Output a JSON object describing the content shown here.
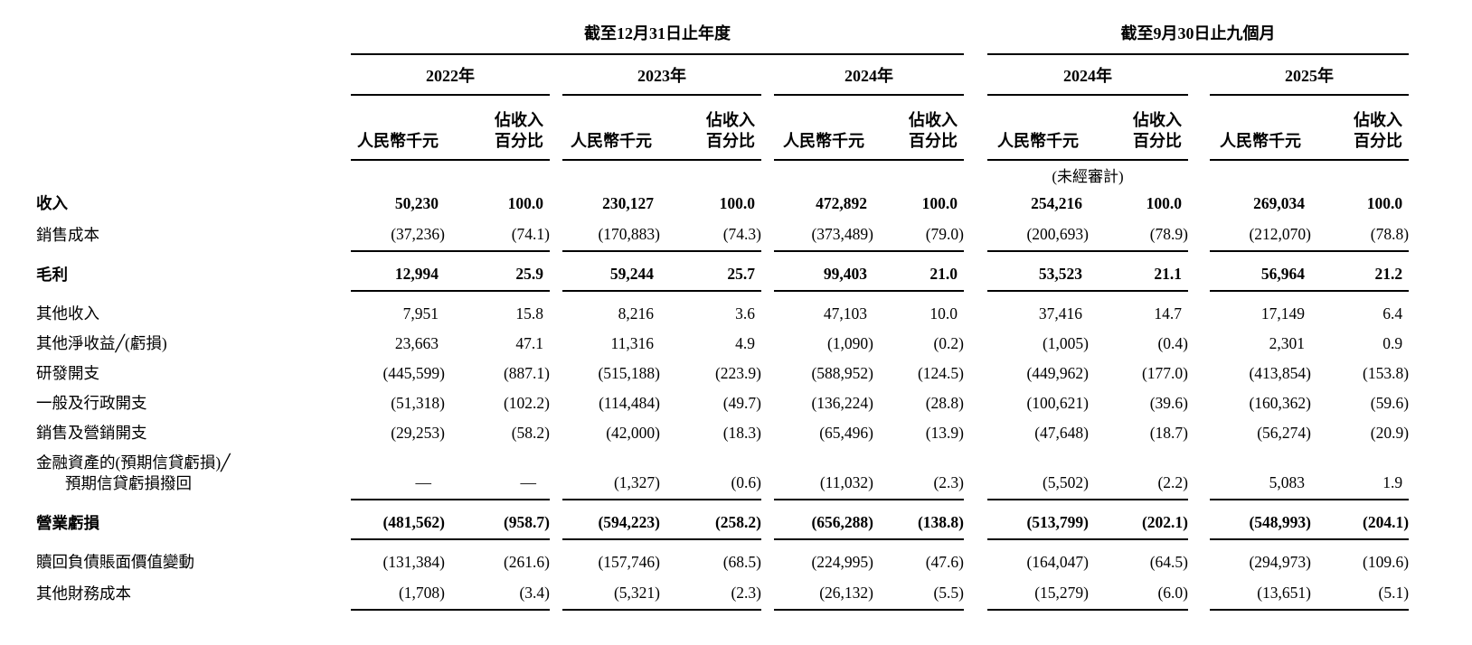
{
  "table": {
    "group_headers": [
      {
        "label": "截至12月31日止年度"
      },
      {
        "label": "截至9月30日止九個月"
      }
    ],
    "years": [
      "2022年",
      "2023年",
      "2024年",
      "2024年",
      "2025年"
    ],
    "col_headers": {
      "amount": "人民幣千元",
      "pct_line1": "佔收入",
      "pct_line2": "百分比"
    },
    "unaudited_note": "(未經審計)",
    "rows": [
      {
        "label": "收入",
        "bold": true,
        "rule_below": false,
        "gap_above": false,
        "values": [
          "50,230",
          "100.0",
          "230,127",
          "100.0",
          "472,892",
          "100.0",
          "254,216",
          "100.0",
          "269,034",
          "100.0"
        ]
      },
      {
        "label": "銷售成本",
        "bold": false,
        "rule_below": true,
        "gap_above": false,
        "values": [
          "(37,236)",
          "(74.1)",
          "(170,883)",
          "(74.3)",
          "(373,489)",
          "(79.0)",
          "(200,693)",
          "(78.9)",
          "(212,070)",
          "(78.8)"
        ]
      },
      {
        "label": "毛利",
        "bold": true,
        "rule_below": true,
        "gap_above": true,
        "values": [
          "12,994",
          "25.9",
          "59,244",
          "25.7",
          "99,403",
          "21.0",
          "53,523",
          "21.1",
          "56,964",
          "21.2"
        ]
      },
      {
        "label": "其他收入",
        "bold": false,
        "rule_below": false,
        "gap_above": true,
        "values": [
          "7,951",
          "15.8",
          "8,216",
          "3.6",
          "47,103",
          "10.0",
          "37,416",
          "14.7",
          "17,149",
          "6.4"
        ]
      },
      {
        "label": "其他淨收益╱(虧損)",
        "bold": false,
        "rule_below": false,
        "gap_above": false,
        "values": [
          "23,663",
          "47.1",
          "11,316",
          "4.9",
          "(1,090)",
          "(0.2)",
          "(1,005)",
          "(0.4)",
          "2,301",
          "0.9"
        ]
      },
      {
        "label": "研發開支",
        "bold": false,
        "rule_below": false,
        "gap_above": false,
        "values": [
          "(445,599)",
          "(887.1)",
          "(515,188)",
          "(223.9)",
          "(588,952)",
          "(124.5)",
          "(449,962)",
          "(177.0)",
          "(413,854)",
          "(153.8)"
        ]
      },
      {
        "label": "一般及行政開支",
        "bold": false,
        "rule_below": false,
        "gap_above": false,
        "values": [
          "(51,318)",
          "(102.2)",
          "(114,484)",
          "(49.7)",
          "(136,224)",
          "(28.8)",
          "(100,621)",
          "(39.6)",
          "(160,362)",
          "(59.6)"
        ]
      },
      {
        "label": "銷售及營銷開支",
        "bold": false,
        "rule_below": false,
        "gap_above": false,
        "values": [
          "(29,253)",
          "(58.2)",
          "(42,000)",
          "(18.3)",
          "(65,496)",
          "(13.9)",
          "(47,648)",
          "(18.7)",
          "(56,274)",
          "(20.9)"
        ]
      },
      {
        "label": "金融資產的(預期信貸虧損)╱",
        "label2": "預期信貸虧損撥回",
        "bold": false,
        "rule_below": true,
        "gap_above": false,
        "values": [
          "—",
          "—",
          "(1,327)",
          "(0.6)",
          "(11,032)",
          "(2.3)",
          "(5,502)",
          "(2.2)",
          "5,083",
          "1.9"
        ]
      },
      {
        "label": "營業虧損",
        "bold": true,
        "rule_below": true,
        "gap_above": true,
        "values": [
          "(481,562)",
          "(958.7)",
          "(594,223)",
          "(258.2)",
          "(656,288)",
          "(138.8)",
          "(513,799)",
          "(202.1)",
          "(548,993)",
          "(204.1)"
        ]
      },
      {
        "label": "贖回負債賬面價值變動",
        "bold": false,
        "rule_below": false,
        "gap_above": true,
        "values": [
          "(131,384)",
          "(261.6)",
          "(157,746)",
          "(68.5)",
          "(224,995)",
          "(47.6)",
          "(164,047)",
          "(64.5)",
          "(294,973)",
          "(109.6)"
        ]
      },
      {
        "label": "其他財務成本",
        "bold": false,
        "rule_below": true,
        "gap_above": false,
        "values": [
          "(1,708)",
          "(3.4)",
          "(5,321)",
          "(2.3)",
          "(26,132)",
          "(5.5)",
          "(15,279)",
          "(6.0)",
          "(13,651)",
          "(5.1)"
        ]
      }
    ]
  }
}
